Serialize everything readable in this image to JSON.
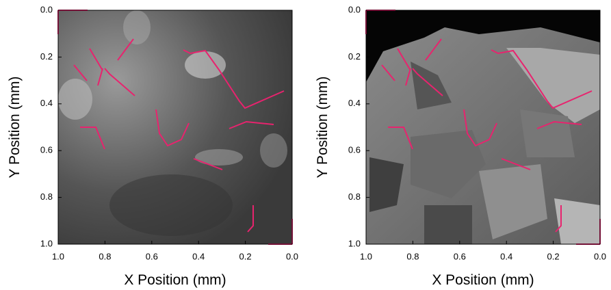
{
  "chart_data": [
    {
      "type": "image",
      "xlabel": "X Position (mm)",
      "ylabel": "Y Position (mm)",
      "xlim": [
        1,
        0
      ],
      "ylim": [
        1,
        0
      ],
      "xticks": [
        {
          "value": 1,
          "label": "1.0"
        },
        0.8,
        0.6,
        0.4,
        0.2,
        {
          "value": 0,
          "label": "0.0"
        }
      ],
      "yticks": [
        {
          "value": 0,
          "label": "0.0"
        },
        0.2,
        0.4,
        0.6,
        0.8,
        {
          "value": 1,
          "label": "1.0"
        }
      ]
    },
    {
      "type": "image",
      "xlabel": "X Position (mm)",
      "ylabel": "Y Position (mm)",
      "xlim": [
        1,
        0
      ],
      "ylim": [
        1,
        0
      ],
      "xticks": [
        {
          "value": 1,
          "label": "1.0"
        },
        0.8,
        0.6,
        0.4,
        0.2,
        {
          "value": 0,
          "label": "0.0"
        }
      ],
      "yticks": [
        {
          "value": 0,
          "label": "0.0"
        },
        0.2,
        0.4,
        0.6,
        0.8,
        {
          "value": 1,
          "label": "1.0"
        }
      ]
    }
  ]
}
